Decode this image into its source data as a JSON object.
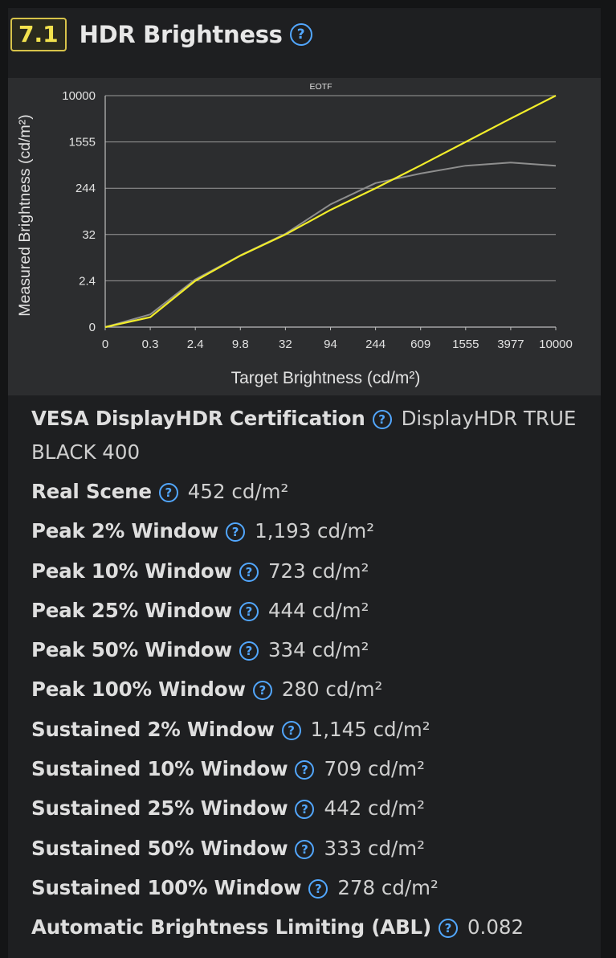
{
  "section": {
    "number": "7.1",
    "title": "HDR Brightness",
    "help_icon": "question-circle-icon"
  },
  "chart_data": {
    "type": "line",
    "title": "EOTF",
    "xlabel": "Target Brightness (cd/m²)",
    "ylabel": "Measured Brightness (cd/m²)",
    "x_ticks": [
      "0",
      "0.3",
      "2.4",
      "9.8",
      "32",
      "94",
      "244",
      "609",
      "1555",
      "3977",
      "10000"
    ],
    "y_ticks": [
      "0",
      "2.4",
      "32",
      "244",
      "1555",
      "10000"
    ],
    "grid": true,
    "series": [
      {
        "color": "#8e8e8e",
        "x": [
          "0",
          "0.3",
          "2.4",
          "9.8",
          "32",
          "94",
          "244",
          "609",
          "1555",
          "3977",
          "10000"
        ],
        "values": [
          0,
          0.4,
          2.6,
          10,
          33,
          120,
          300,
          440,
          600,
          680,
          600
        ]
      },
      {
        "color": "#f2ed2a",
        "x": [
          "0",
          "0.3",
          "2.4",
          "9.8",
          "32",
          "94",
          "244",
          "609",
          "1555",
          "3977",
          "10000"
        ],
        "values": [
          0,
          0.3,
          2.4,
          9.8,
          32,
          94,
          244,
          609,
          1555,
          3977,
          10000
        ]
      }
    ]
  },
  "specs": [
    {
      "label": "VESA DisplayHDR Certification",
      "value": "DisplayHDR TRUE BLACK 400",
      "icon": "question-circle-icon"
    },
    {
      "label": "Real Scene",
      "value": "452 cd/m²",
      "icon": "question-circle-icon"
    },
    {
      "label": "Peak 2% Window",
      "value": "1,193 cd/m²",
      "icon": "question-circle-icon"
    },
    {
      "label": "Peak 10% Window",
      "value": "723 cd/m²",
      "icon": "question-circle-icon"
    },
    {
      "label": "Peak 25% Window",
      "value": "444 cd/m²",
      "icon": "question-circle-icon"
    },
    {
      "label": "Peak 50% Window",
      "value": "334 cd/m²",
      "icon": "question-circle-icon"
    },
    {
      "label": "Peak 100% Window",
      "value": "280 cd/m²",
      "icon": "question-circle-icon"
    },
    {
      "label": "Sustained 2% Window",
      "value": "1,145 cd/m²",
      "icon": "question-circle-icon"
    },
    {
      "label": "Sustained 10% Window",
      "value": "709 cd/m²",
      "icon": "question-circle-icon"
    },
    {
      "label": "Sustained 25% Window",
      "value": "442 cd/m²",
      "icon": "question-circle-icon"
    },
    {
      "label": "Sustained 50% Window",
      "value": "333 cd/m²",
      "icon": "question-circle-icon"
    },
    {
      "label": "Sustained 100% Window",
      "value": "278 cd/m²",
      "icon": "question-circle-icon"
    },
    {
      "label": "Automatic Brightness Limiting (ABL)",
      "value": "0.082",
      "icon": "question-circle-icon"
    }
  ],
  "colors": {
    "panel_bg": "#1e1f21",
    "chart_bg": "#2c2d2f",
    "badge_border": "#d7c34a",
    "badge_text": "#f2e24e",
    "help_icon": "#52a7ff"
  }
}
